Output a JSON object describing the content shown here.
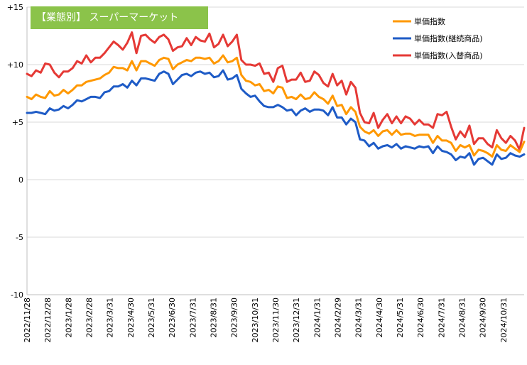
{
  "chart_data": {
    "type": "line",
    "title": "【業態別】 スーパーマーケット",
    "xlabel": "",
    "ylabel": "",
    "ylim": [
      -10,
      15
    ],
    "yticks": [
      15,
      10,
      5,
      0,
      -5,
      -10
    ],
    "ytick_labels": [
      "+15",
      "+10",
      "+5",
      "0",
      "-5",
      "-10"
    ],
    "xtick_labels": [
      "2022/11/28",
      "2022/12/28",
      "2023/1/28",
      "2023/2/28",
      "2023/3/31",
      "2023/4/30",
      "2023/5/31",
      "2023/6/30",
      "2023/7/31",
      "2023/8/31",
      "2023/9/30",
      "2023/10/31",
      "2023/11/30",
      "2023/12/31",
      "2024/1/31",
      "2024/2/29",
      "2024/3/31",
      "2024/4/30",
      "2024/5/31",
      "2024/6/30",
      "2024/7/31",
      "2024/8/31",
      "2024/9/30",
      "2024/10/31"
    ],
    "grid": "horizontal",
    "legend_position": "top-right",
    "series": [
      {
        "name": "単価指数(入替商品)",
        "color": "#e53935",
        "values": [
          9.2,
          9.0,
          9.5,
          9.3,
          10.1,
          10.0,
          9.3,
          8.9,
          9.4,
          9.4,
          9.7,
          10.3,
          10.1,
          10.8,
          10.2,
          10.6,
          10.6,
          11.0,
          11.5,
          12.0,
          11.7,
          11.3,
          11.9,
          12.8,
          11.0,
          12.5,
          12.6,
          12.2,
          11.9,
          12.4,
          12.6,
          12.2,
          11.2,
          11.5,
          11.6,
          12.3,
          11.7,
          12.4,
          12.1,
          12.0,
          12.7,
          11.5,
          11.8,
          12.6,
          11.6,
          12.0,
          12.6,
          10.4,
          10.0,
          10.0,
          9.9,
          10.1,
          9.2,
          9.3,
          8.5,
          9.7,
          9.9,
          8.5,
          8.7,
          8.7,
          9.3,
          8.5,
          8.6,
          9.4,
          9.1,
          8.4,
          8.1,
          9.2,
          8.2,
          8.6,
          7.4,
          8.5,
          8.0,
          5.8,
          5.0,
          4.9,
          5.8,
          4.5,
          5.2,
          5.7,
          4.9,
          5.5,
          4.9,
          5.5,
          5.3,
          4.8,
          5.2,
          4.8,
          4.8,
          4.5,
          5.7,
          5.6,
          5.9,
          4.6,
          3.5,
          4.2,
          3.7,
          4.7,
          3.1,
          3.6,
          3.6,
          3.1,
          2.8,
          4.3,
          3.6,
          3.2,
          3.8,
          3.4,
          2.6,
          4.5
        ]
      },
      {
        "name": "単価指数",
        "color": "#ff9800",
        "values": [
          7.2,
          7.0,
          7.4,
          7.2,
          7.1,
          7.7,
          7.3,
          7.4,
          7.8,
          7.5,
          7.8,
          8.2,
          8.2,
          8.5,
          8.6,
          8.7,
          8.8,
          9.1,
          9.3,
          9.8,
          9.7,
          9.7,
          9.5,
          10.3,
          9.5,
          10.3,
          10.3,
          10.1,
          9.9,
          10.4,
          10.6,
          10.5,
          9.6,
          10.0,
          10.2,
          10.4,
          10.3,
          10.6,
          10.6,
          10.5,
          10.6,
          10.1,
          10.3,
          10.8,
          10.2,
          10.3,
          10.6,
          9.1,
          8.6,
          8.5,
          8.2,
          8.3,
          7.7,
          7.8,
          7.5,
          8.1,
          8.0,
          7.1,
          7.2,
          7.0,
          7.4,
          7.0,
          7.1,
          7.6,
          7.2,
          7.0,
          6.6,
          7.3,
          6.4,
          6.5,
          5.7,
          6.3,
          5.9,
          4.6,
          4.2,
          4.0,
          4.3,
          3.8,
          4.2,
          4.3,
          3.9,
          4.3,
          3.9,
          4.0,
          4.0,
          3.8,
          3.9,
          3.9,
          3.9,
          3.2,
          3.8,
          3.4,
          3.4,
          3.2,
          2.5,
          3.0,
          2.8,
          3.0,
          2.1,
          2.6,
          2.5,
          2.3,
          2.0,
          3.0,
          2.6,
          2.5,
          3.0,
          2.7,
          2.4,
          3.3
        ]
      },
      {
        "name": "単価指数(継続商品)",
        "color": "#1e5bc6",
        "values": [
          5.8,
          5.8,
          5.9,
          5.8,
          5.7,
          6.2,
          6.0,
          6.1,
          6.4,
          6.2,
          6.5,
          6.9,
          6.8,
          7.0,
          7.2,
          7.2,
          7.1,
          7.6,
          7.7,
          8.1,
          8.1,
          8.3,
          8.0,
          8.6,
          8.2,
          8.8,
          8.8,
          8.7,
          8.6,
          9.2,
          9.4,
          9.2,
          8.3,
          8.7,
          9.1,
          9.2,
          9.0,
          9.3,
          9.4,
          9.2,
          9.3,
          8.9,
          9.0,
          9.5,
          8.7,
          8.8,
          9.1,
          7.9,
          7.5,
          7.2,
          7.3,
          6.8,
          6.4,
          6.3,
          6.3,
          6.5,
          6.3,
          6.0,
          6.1,
          5.6,
          6.0,
          6.2,
          5.9,
          6.1,
          6.1,
          6.0,
          5.6,
          6.3,
          5.4,
          5.4,
          4.8,
          5.3,
          5.0,
          3.5,
          3.4,
          2.9,
          3.2,
          2.7,
          2.9,
          3.0,
          2.8,
          3.1,
          2.7,
          2.9,
          2.8,
          2.7,
          2.9,
          2.8,
          2.9,
          2.3,
          2.9,
          2.5,
          2.4,
          2.2,
          1.7,
          2.0,
          1.9,
          2.3,
          1.3,
          1.8,
          1.9,
          1.6,
          1.3,
          2.2,
          1.8,
          1.9,
          2.3,
          2.1,
          2.0,
          2.2
        ]
      }
    ],
    "legend_order": [
      "単価指数",
      "単価指数(継続商品)",
      "単価指数(入替商品)"
    ]
  }
}
